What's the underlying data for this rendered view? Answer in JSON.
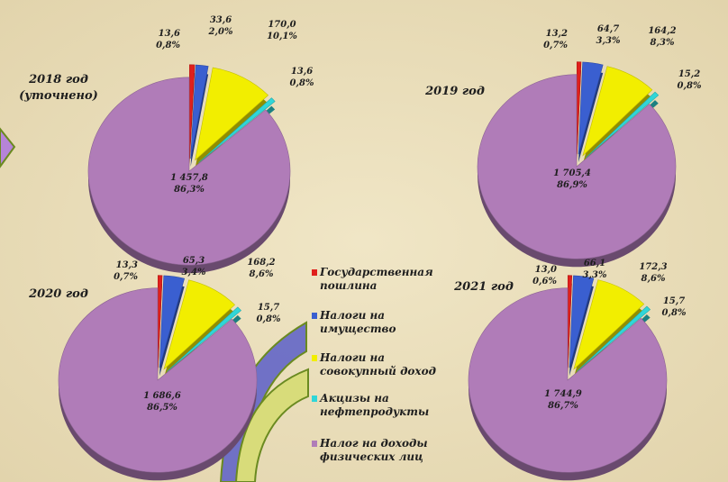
{
  "chart_data": [
    {
      "type": "pie",
      "title": "2018 год",
      "subtitle": "(уточнено)",
      "values": [
        13.6,
        33.6,
        170.0,
        13.6,
        1457.8
      ],
      "value_labels": [
        "13,6",
        "33,6",
        "170,0",
        "13,6",
        "1 457,8"
      ],
      "percents": [
        0.8,
        2.0,
        10.1,
        0.8,
        86.3
      ],
      "percent_labels": [
        "0,8%",
        "2,0%",
        "10,1%",
        "0,8%",
        "86,3%"
      ]
    },
    {
      "type": "pie",
      "title": "2019 год",
      "values": [
        13.2,
        64.7,
        164.2,
        15.2,
        1705.4
      ],
      "value_labels": [
        "13,2",
        "64,7",
        "164,2",
        "15,2",
        "1 705,4"
      ],
      "percents": [
        0.7,
        3.3,
        8.3,
        0.8,
        86.9
      ],
      "percent_labels": [
        "0,7%",
        "3,3%",
        "8,3%",
        "0,8%",
        "86,9%"
      ]
    },
    {
      "type": "pie",
      "title": "2020 год",
      "values": [
        13.3,
        65.3,
        168.2,
        15.7,
        1686.6
      ],
      "value_labels": [
        "13,3",
        "65,3",
        "168,2",
        "15,7",
        "1 686,6"
      ],
      "percents": [
        0.7,
        3.4,
        8.6,
        0.8,
        86.5
      ],
      "percent_labels": [
        "0,7%",
        "3,4%",
        "8,6%",
        "0,8%",
        "86,5%"
      ]
    },
    {
      "type": "pie",
      "title": "2021 год",
      "values": [
        13.0,
        66.1,
        172.3,
        15.7,
        1744.9
      ],
      "value_labels": [
        "13,0",
        "66,1",
        "172,3",
        "15,7",
        "1 744,9"
      ],
      "percents": [
        0.6,
        3.3,
        8.6,
        0.8,
        86.7
      ],
      "percent_labels": [
        "0,6%",
        "3,3%",
        "8,6%",
        "0,8%",
        "86,7%"
      ]
    }
  ],
  "legend": {
    "categories": [
      "Государственная пошлина",
      "Налоги на имущество",
      "Налоги на совокупный доход",
      "Акцизы на нефтепродукты",
      "Налог на доходы физических лиц"
    ],
    "colors": [
      "#e0201c",
      "#3a5fd0",
      "#f2ee00",
      "#30d6d8",
      "#b07cb8"
    ]
  }
}
